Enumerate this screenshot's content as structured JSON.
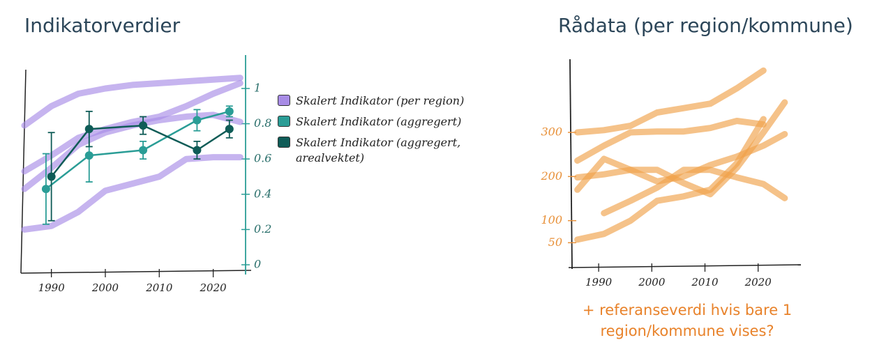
{
  "chart_data": [
    {
      "type": "line",
      "title": "Indikatorverdier",
      "xlim": [
        1985,
        2026
      ],
      "xticks": [
        1990,
        2000,
        2010,
        2020
      ],
      "ylim": [
        0,
        1.15
      ],
      "yticks": [
        0,
        0.2,
        0.4,
        0.6,
        0.8,
        1
      ],
      "y_axis_side": "right",
      "y_axis_color": "#2a9d96",
      "series": [
        {
          "name": "Skalert Indikator (per region)",
          "color": "#a88ce6",
          "x": [
            1985,
            1990,
            1995,
            2000,
            2005,
            2010,
            2015,
            2020,
            2025
          ],
          "values": [
            0.79,
            0.9,
            0.97,
            1.0,
            1.02,
            1.03,
            1.04,
            1.05,
            1.06
          ]
        },
        {
          "color": "#a88ce6",
          "x": [
            1985,
            1990,
            1995,
            2000,
            2005,
            2010,
            2015,
            2020,
            2025
          ],
          "values": [
            0.53,
            0.62,
            0.72,
            0.77,
            0.81,
            0.84,
            0.9,
            0.97,
            1.03
          ]
        },
        {
          "color": "#a88ce6",
          "x": [
            1985,
            1990,
            1995,
            2000,
            2005,
            2010,
            2015,
            2020,
            2025
          ],
          "values": [
            0.43,
            0.55,
            0.68,
            0.75,
            0.79,
            0.82,
            0.84,
            0.85,
            0.81
          ]
        },
        {
          "color": "#a88ce6",
          "x": [
            1985,
            1990,
            1995,
            2000,
            2005,
            2010,
            2015,
            2020,
            2025
          ],
          "values": [
            0.2,
            0.22,
            0.3,
            0.42,
            0.46,
            0.5,
            0.6,
            0.61,
            0.61
          ]
        },
        {
          "name": "Skalert Indikator (aggregert)",
          "color": "#2a9d96",
          "x": [
            1989,
            1997,
            2007,
            2017,
            2023
          ],
          "values": [
            0.43,
            0.62,
            0.65,
            0.82,
            0.87
          ],
          "errors": [
            0.2,
            0.15,
            0.05,
            0.06,
            0.03
          ]
        },
        {
          "name": "Skalert Indikator (aggregert, arealvektet)",
          "color": "#0f5c57",
          "x": [
            1990,
            1997,
            2007,
            2017,
            2023
          ],
          "values": [
            0.5,
            0.77,
            0.79,
            0.65,
            0.77
          ],
          "errors": [
            0.25,
            0.1,
            0.05,
            0.05,
            0.05
          ]
        }
      ]
    },
    {
      "type": "line",
      "title": "Rådata (per region/kommune)",
      "annotation": "+ referanseverdi hvis bare 1 region/kommune vises?",
      "xlim": [
        1985,
        2027
      ],
      "xticks": [
        1990,
        2000,
        2010,
        2020
      ],
      "ylim": [
        0,
        450
      ],
      "yticks": [
        50,
        100,
        200,
        300
      ],
      "y_axis_side": "left",
      "y_axis_color": "#e8913a",
      "x": [
        1986,
        1991,
        1996,
        2001,
        2006,
        2011,
        2016,
        2021,
        2025
      ],
      "series": [
        {
          "color": "#f0a24a",
          "values": [
            300,
            305,
            315,
            345,
            355,
            365,
            400,
            440,
            null
          ]
        },
        {
          "color": "#f0a24a",
          "values": [
            236,
            270,
            300,
            302,
            302,
            310,
            326,
            318,
            null
          ]
        },
        {
          "color": "#f0a24a",
          "values": [
            170,
            240,
            215,
            189,
            200,
            226,
            245,
            270,
            296
          ]
        },
        {
          "color": "#f0a24a",
          "values": [
            198,
            205,
            215,
            215,
            185,
            160,
            220,
            300,
            368
          ]
        },
        {
          "color": "#f0a24a",
          "values": [
            null,
            117,
            145,
            175,
            215,
            215,
            198,
            183,
            151
          ]
        },
        {
          "color": "#f0a24a",
          "values": [
            57,
            70,
            100,
            145,
            155,
            170,
            230,
            330,
            null
          ]
        }
      ]
    }
  ]
}
